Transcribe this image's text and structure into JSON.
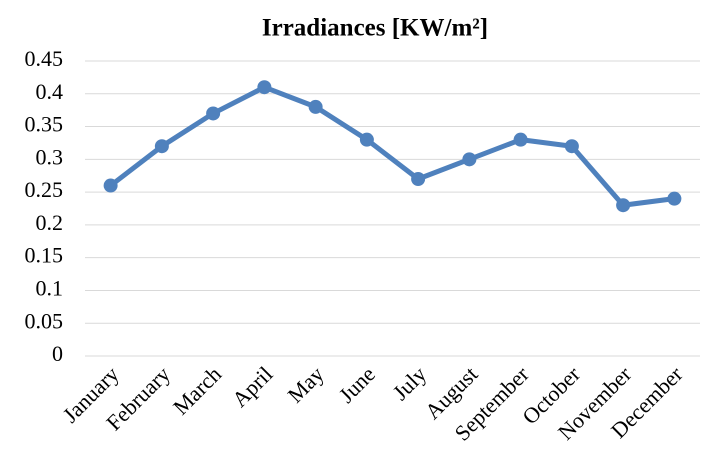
{
  "chart_data": {
    "type": "line",
    "title": "Irradiances [KW/m²]",
    "categories": [
      "January",
      "February",
      "March",
      "April",
      "May",
      "June",
      "July",
      "August",
      "September",
      "October",
      "November",
      "December"
    ],
    "series": [
      {
        "name": "Irradiances",
        "color": "#4f81bd",
        "values": [
          0.26,
          0.32,
          0.37,
          0.41,
          0.38,
          0.33,
          0.27,
          0.3,
          0.33,
          0.32,
          0.23,
          0.24
        ]
      }
    ],
    "ylim": [
      0,
      0.45
    ],
    "yticks": [
      0,
      0.05,
      0.1,
      0.15,
      0.2,
      0.25,
      0.3,
      0.35,
      0.4,
      0.45
    ],
    "grid": true
  }
}
